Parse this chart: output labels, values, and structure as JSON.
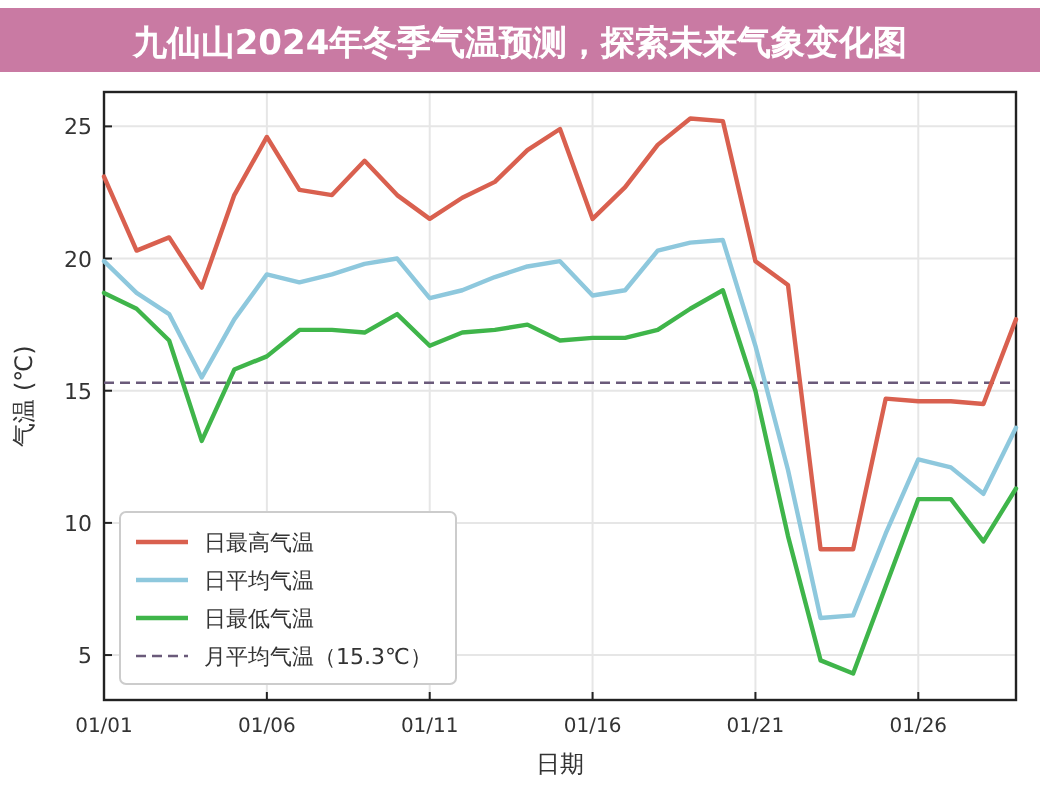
{
  "chart_data": {
    "type": "line",
    "title": "九仙山2024年冬季气温预测，探索未来气象变化图",
    "xlabel": "日期",
    "ylabel": "气温 (℃)",
    "x": [
      "--01-01",
      "--01-02",
      "--01-03",
      "--01-04",
      "--01-05",
      "--01-06",
      "--01-07",
      "--01-08",
      "--01-09",
      "--01-10",
      "--01-11",
      "--01-12",
      "--01-13",
      "--01-14",
      "--01-15",
      "--01-16",
      "--01-17",
      "--01-18",
      "--01-19",
      "--01-20",
      "--01-21",
      "--01-22",
      "--01-23",
      "--01-24",
      "--01-25",
      "--01-26",
      "--01-27",
      "--01-28",
      "--01-29"
    ],
    "series": [
      {
        "name": "日最高气温",
        "color": "#d9604f",
        "values": [
          23.1,
          20.3,
          20.8,
          18.9,
          22.4,
          24.6,
          22.6,
          22.4,
          23.7,
          22.4,
          21.5,
          22.3,
          22.9,
          24.1,
          24.9,
          21.5,
          22.7,
          24.3,
          25.3,
          25.2,
          19.9,
          19.0,
          9.0,
          9.0,
          14.7,
          14.6,
          14.6,
          14.5,
          17.7
        ]
      },
      {
        "name": "日平均气温",
        "color": "#8ec8dd",
        "values": [
          19.9,
          18.7,
          17.9,
          15.5,
          17.7,
          19.4,
          19.1,
          19.4,
          19.8,
          20.0,
          18.5,
          18.8,
          19.3,
          19.7,
          19.9,
          18.6,
          18.8,
          20.3,
          20.6,
          20.7,
          16.7,
          12.0,
          6.4,
          6.5,
          9.6,
          12.4,
          12.1,
          11.1,
          13.6
        ]
      },
      {
        "name": "日最低气温",
        "color": "#3fb54a",
        "values": [
          18.7,
          18.1,
          16.9,
          13.1,
          15.8,
          16.3,
          17.3,
          17.3,
          17.2,
          17.9,
          16.7,
          17.2,
          17.3,
          17.5,
          16.9,
          17.0,
          17.0,
          17.3,
          18.1,
          18.8,
          15.0,
          9.5,
          4.8,
          4.3,
          7.6,
          10.9,
          10.9,
          9.3,
          11.3
        ]
      }
    ],
    "ref_lines": [
      {
        "axis": "y",
        "value": 15.3,
        "label": "月平均气温（15.3℃）",
        "color": "#6a5a7a",
        "line_style": "dashed"
      }
    ],
    "xlim": [
      "--01-01",
      "--01-29"
    ],
    "xticks": [
      {
        "value": "--01-01",
        "label": "01/01"
      },
      {
        "value": "--01-06",
        "label": "01/06"
      },
      {
        "value": "--01-11",
        "label": "01/11"
      },
      {
        "value": "--01-16",
        "label": "01/16"
      },
      {
        "value": "--01-21",
        "label": "01/21"
      },
      {
        "value": "--01-26",
        "label": "01/26"
      }
    ],
    "ylim": [
      3.3,
      26.3
    ],
    "yticks": [
      5,
      10,
      15,
      20,
      25
    ],
    "grid": true,
    "legend": "bottom left",
    "marker": "none",
    "line_style": "solid"
  }
}
